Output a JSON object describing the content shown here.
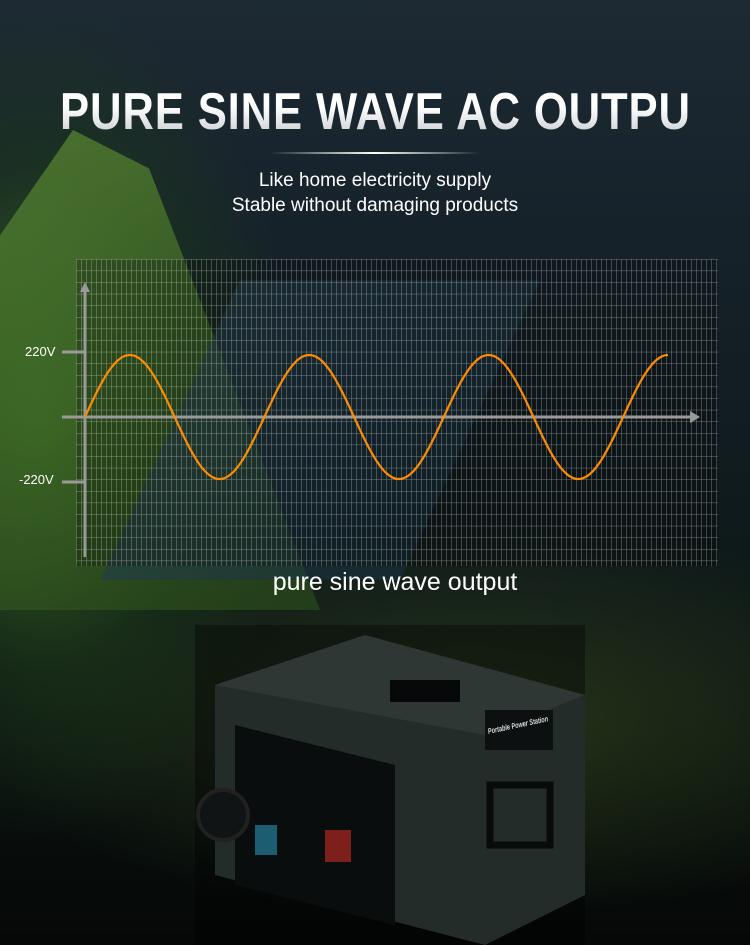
{
  "header": {
    "title": "PURE SINE WAVE AC OUTPUT",
    "subtitle_lines": [
      "Like home electricity supply",
      "Stable without damaging products"
    ]
  },
  "chart": {
    "type": "line",
    "y_ticks": [
      "220V",
      "-220V"
    ],
    "amplitude": 220,
    "cycles": 3.25,
    "caption": "pure sine wave output",
    "grid": true,
    "wave_color": "#ff8c00",
    "grid_color": "#ffffff",
    "axis_color": "#9a9a9a"
  },
  "product": {
    "label": "Portable Power Station",
    "body_color": "#3c4a46",
    "socket_colors": [
      "#2d8fb0",
      "#c0302a"
    ]
  }
}
